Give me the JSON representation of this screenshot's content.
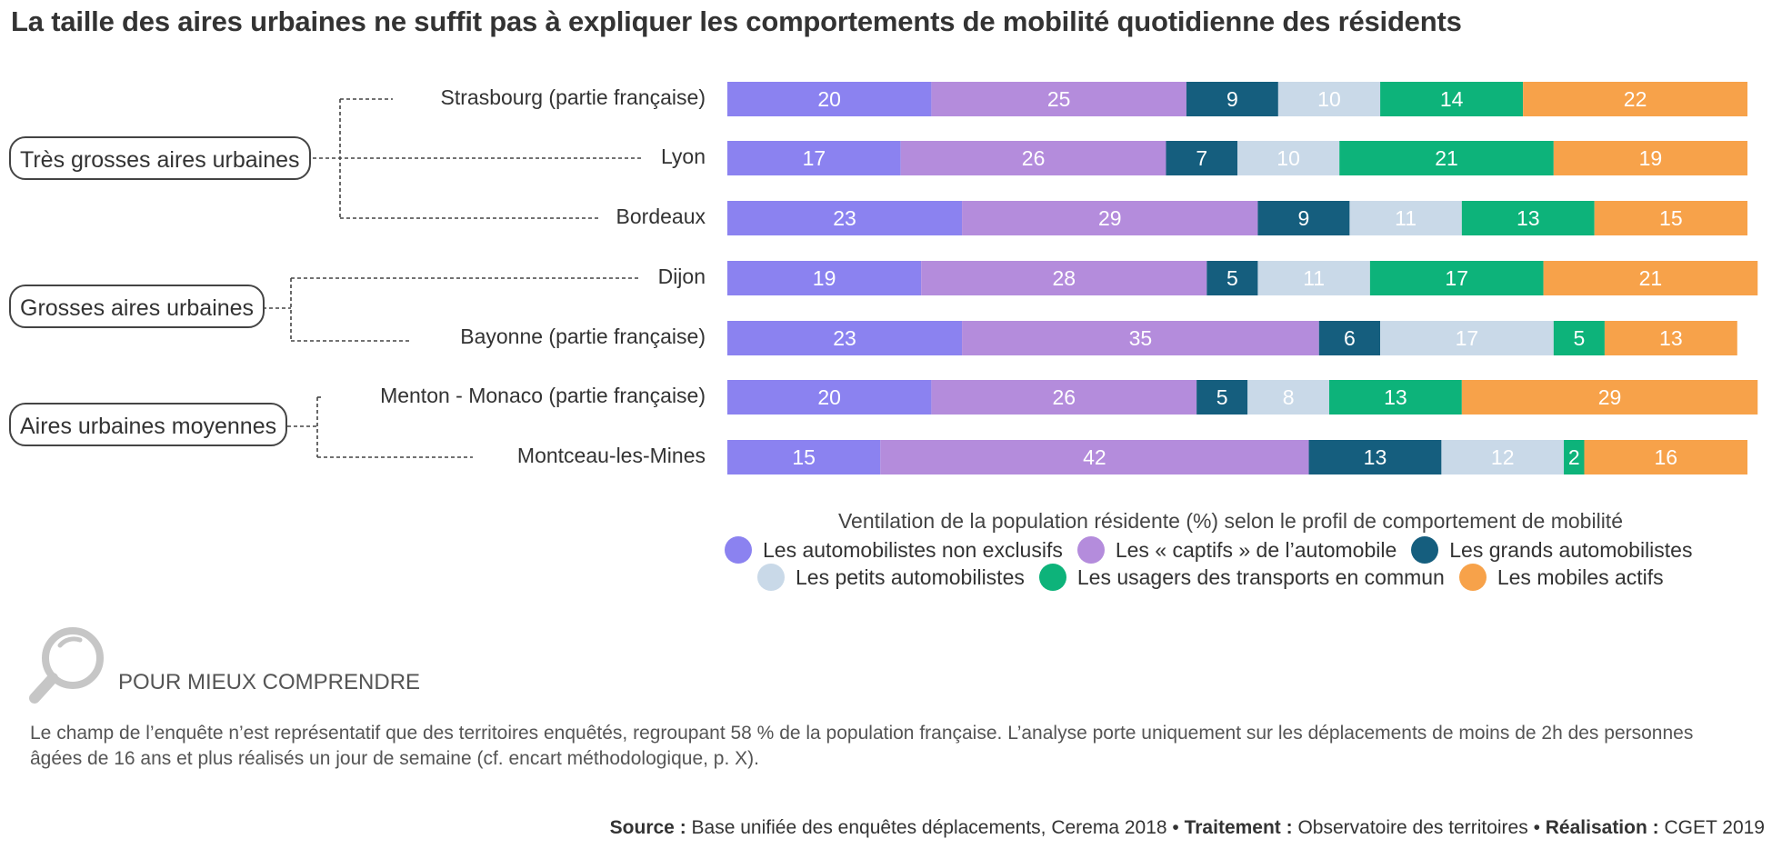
{
  "title": "La taille des aires urbaines ne suffit pas à expliquer les comportements de mobilité quotidienne des résidents",
  "groups": [
    {
      "label": "Très grosses aires urbaines",
      "cities": [
        0,
        1,
        2
      ]
    },
    {
      "label": "Grosses aires urbaines",
      "cities": [
        3,
        4
      ]
    },
    {
      "label": "Aires urbaines moyennes",
      "cities": [
        5,
        6
      ]
    }
  ],
  "chart_data": {
    "type": "bar",
    "orientation": "horizontal",
    "stacked": true,
    "normalized_to": 100,
    "categories": [
      "Strasbourg (partie française)",
      "Lyon",
      "Bordeaux",
      "Dijon",
      "Bayonne (partie française)",
      "Menton - Monaco (partie française)",
      "Montceau-les-Mines"
    ],
    "series": [
      {
        "name": "Les automobilistes non exclusifs",
        "color": "#8b82f0",
        "label_color": "#ffffff",
        "values": [
          20,
          17,
          23,
          19,
          23,
          20,
          15
        ]
      },
      {
        "name": "Les « captifs » de l’automobile",
        "color": "#b48cdc",
        "label_color": "#ffffff",
        "values": [
          25,
          26,
          29,
          28,
          35,
          26,
          42
        ]
      },
      {
        "name": "Les grands automobilistes",
        "color": "#155e7e",
        "label_color": "#ffffff",
        "values": [
          9,
          7,
          9,
          5,
          6,
          5,
          13
        ]
      },
      {
        "name": "Les petits automobilistes",
        "color": "#c9d9e8",
        "label_color": "#ffffff",
        "values": [
          10,
          10,
          11,
          11,
          17,
          8,
          12
        ]
      },
      {
        "name": "Les usagers des transports en commun",
        "color": "#0db37a",
        "label_color": "#ffffff",
        "values": [
          14,
          21,
          13,
          17,
          5,
          13,
          2
        ]
      },
      {
        "name": "Les mobiles actifs",
        "color": "#f7a24a",
        "label_color": "#ffffff",
        "values": [
          22,
          19,
          15,
          21,
          13,
          29,
          16
        ]
      }
    ],
    "legend_title": "Ventilation de la population résidente (%) selon le profil de comportement de mobilité",
    "legend_placement": "bottom",
    "grid": false
  },
  "more": {
    "icon": "magnifier-icon",
    "title": "POUR MIEUX COMPRENDRE",
    "text": "Le champ de l’enquête n’est représentatif que des territoires enquêtés, regroupant 58 % de la population française. L’analyse porte uniquement sur les déplacements de moins de 2h des personnes âgées de 16 ans et plus réalisés un jour de semaine (cf. encart méthodologique, p. X)."
  },
  "source": {
    "source_label": "Source :",
    "source_text": "Base unifiée des enquêtes déplacements, Cerema 2018",
    "sep": " • ",
    "processing_label": "Traitement :",
    "processing_text": "Observatoire des territoires",
    "production_label": "Réalisation :",
    "production_text": "CGET 2019"
  }
}
